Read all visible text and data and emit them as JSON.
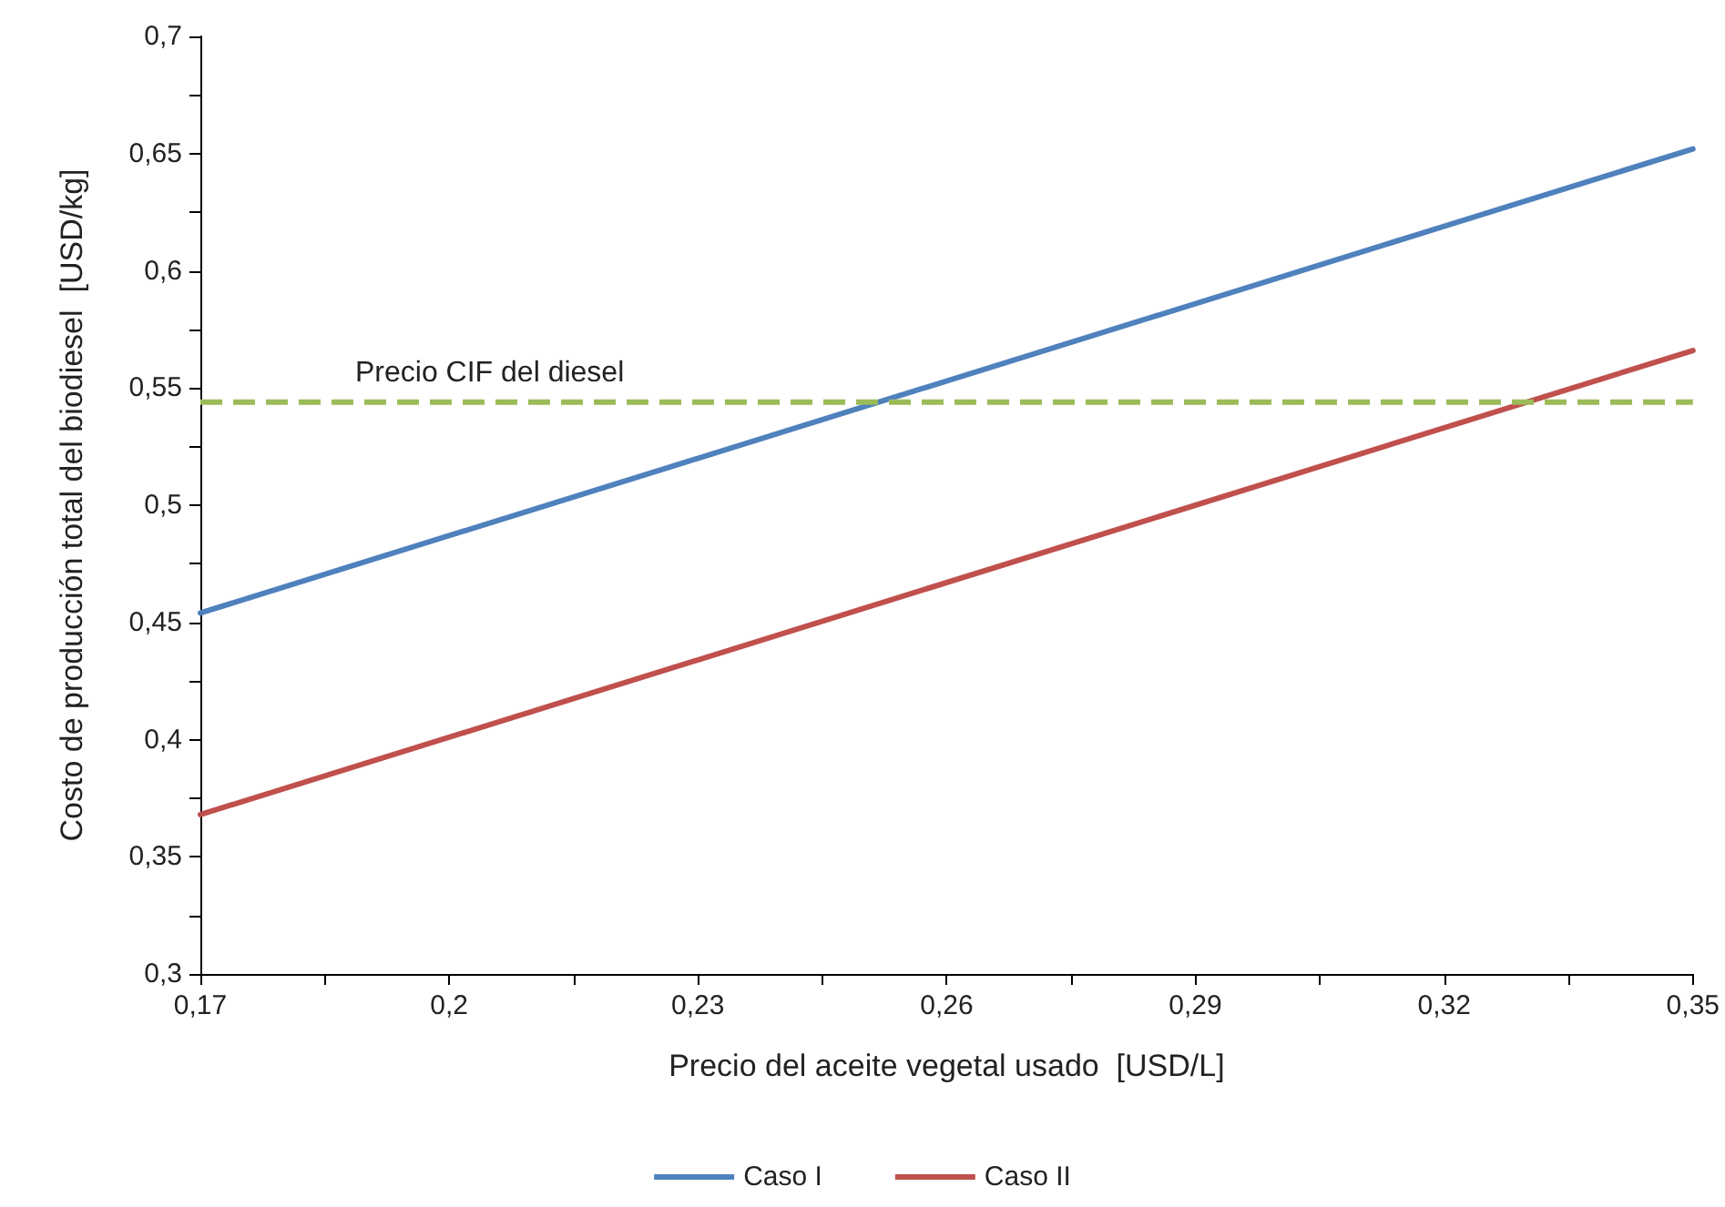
{
  "chart_data": {
    "type": "line",
    "xlabel": "Precio del aceite vegetal usado  [USD/L]",
    "ylabel": "Costo de producción total del biodiesel  [USD/kg]",
    "x": [
      0.17,
      0.35
    ],
    "series": [
      {
        "name": "Caso I",
        "color": "#4f81bd",
        "values": [
          0.454,
          0.652
        ]
      },
      {
        "name": "Caso II",
        "color": "#c0504d",
        "values": [
          0.368,
          0.566
        ]
      }
    ],
    "xlim": [
      0.17,
      0.35
    ],
    "xticks": [
      {
        "value": 0.17,
        "label": "0,17"
      },
      {
        "value": 0.185,
        "label": null
      },
      {
        "value": 0.2,
        "label": "0,2"
      },
      {
        "value": 0.215,
        "label": null
      },
      {
        "value": 0.23,
        "label": "0,23"
      },
      {
        "value": 0.245,
        "label": null
      },
      {
        "value": 0.26,
        "label": "0,26"
      },
      {
        "value": 0.275,
        "label": null
      },
      {
        "value": 0.29,
        "label": "0,29"
      },
      {
        "value": 0.305,
        "label": null
      },
      {
        "value": 0.32,
        "label": "0,32"
      },
      {
        "value": 0.335,
        "label": null
      },
      {
        "value": 0.35,
        "label": "0,35"
      }
    ],
    "ylim": [
      0.3,
      0.7
    ],
    "yticks": [
      {
        "value": 0.3,
        "label": "0,3"
      },
      {
        "value": 0.325,
        "label": null
      },
      {
        "value": 0.35,
        "label": "0,35"
      },
      {
        "value": 0.375,
        "label": null
      },
      {
        "value": 0.4,
        "label": "0,4"
      },
      {
        "value": 0.425,
        "label": null
      },
      {
        "value": 0.45,
        "label": "0,45"
      },
      {
        "value": 0.475,
        "label": null
      },
      {
        "value": 0.5,
        "label": "0,5"
      },
      {
        "value": 0.525,
        "label": null
      },
      {
        "value": 0.55,
        "label": "0,55"
      },
      {
        "value": 0.575,
        "label": null
      },
      {
        "value": 0.6,
        "label": "0,6"
      },
      {
        "value": 0.625,
        "label": null
      },
      {
        "value": 0.65,
        "label": "0,65"
      },
      {
        "value": 0.675,
        "label": null
      },
      {
        "value": 0.7,
        "label": "0,7"
      }
    ],
    "ref_lines": [
      {
        "axis": "y",
        "value": 0.544,
        "label": "Precio CIF del diesel",
        "color": "#9bbb59",
        "line_style": "dashed"
      }
    ],
    "grid": false,
    "legend": "bottom",
    "marker": "none",
    "line_style": "solid"
  }
}
